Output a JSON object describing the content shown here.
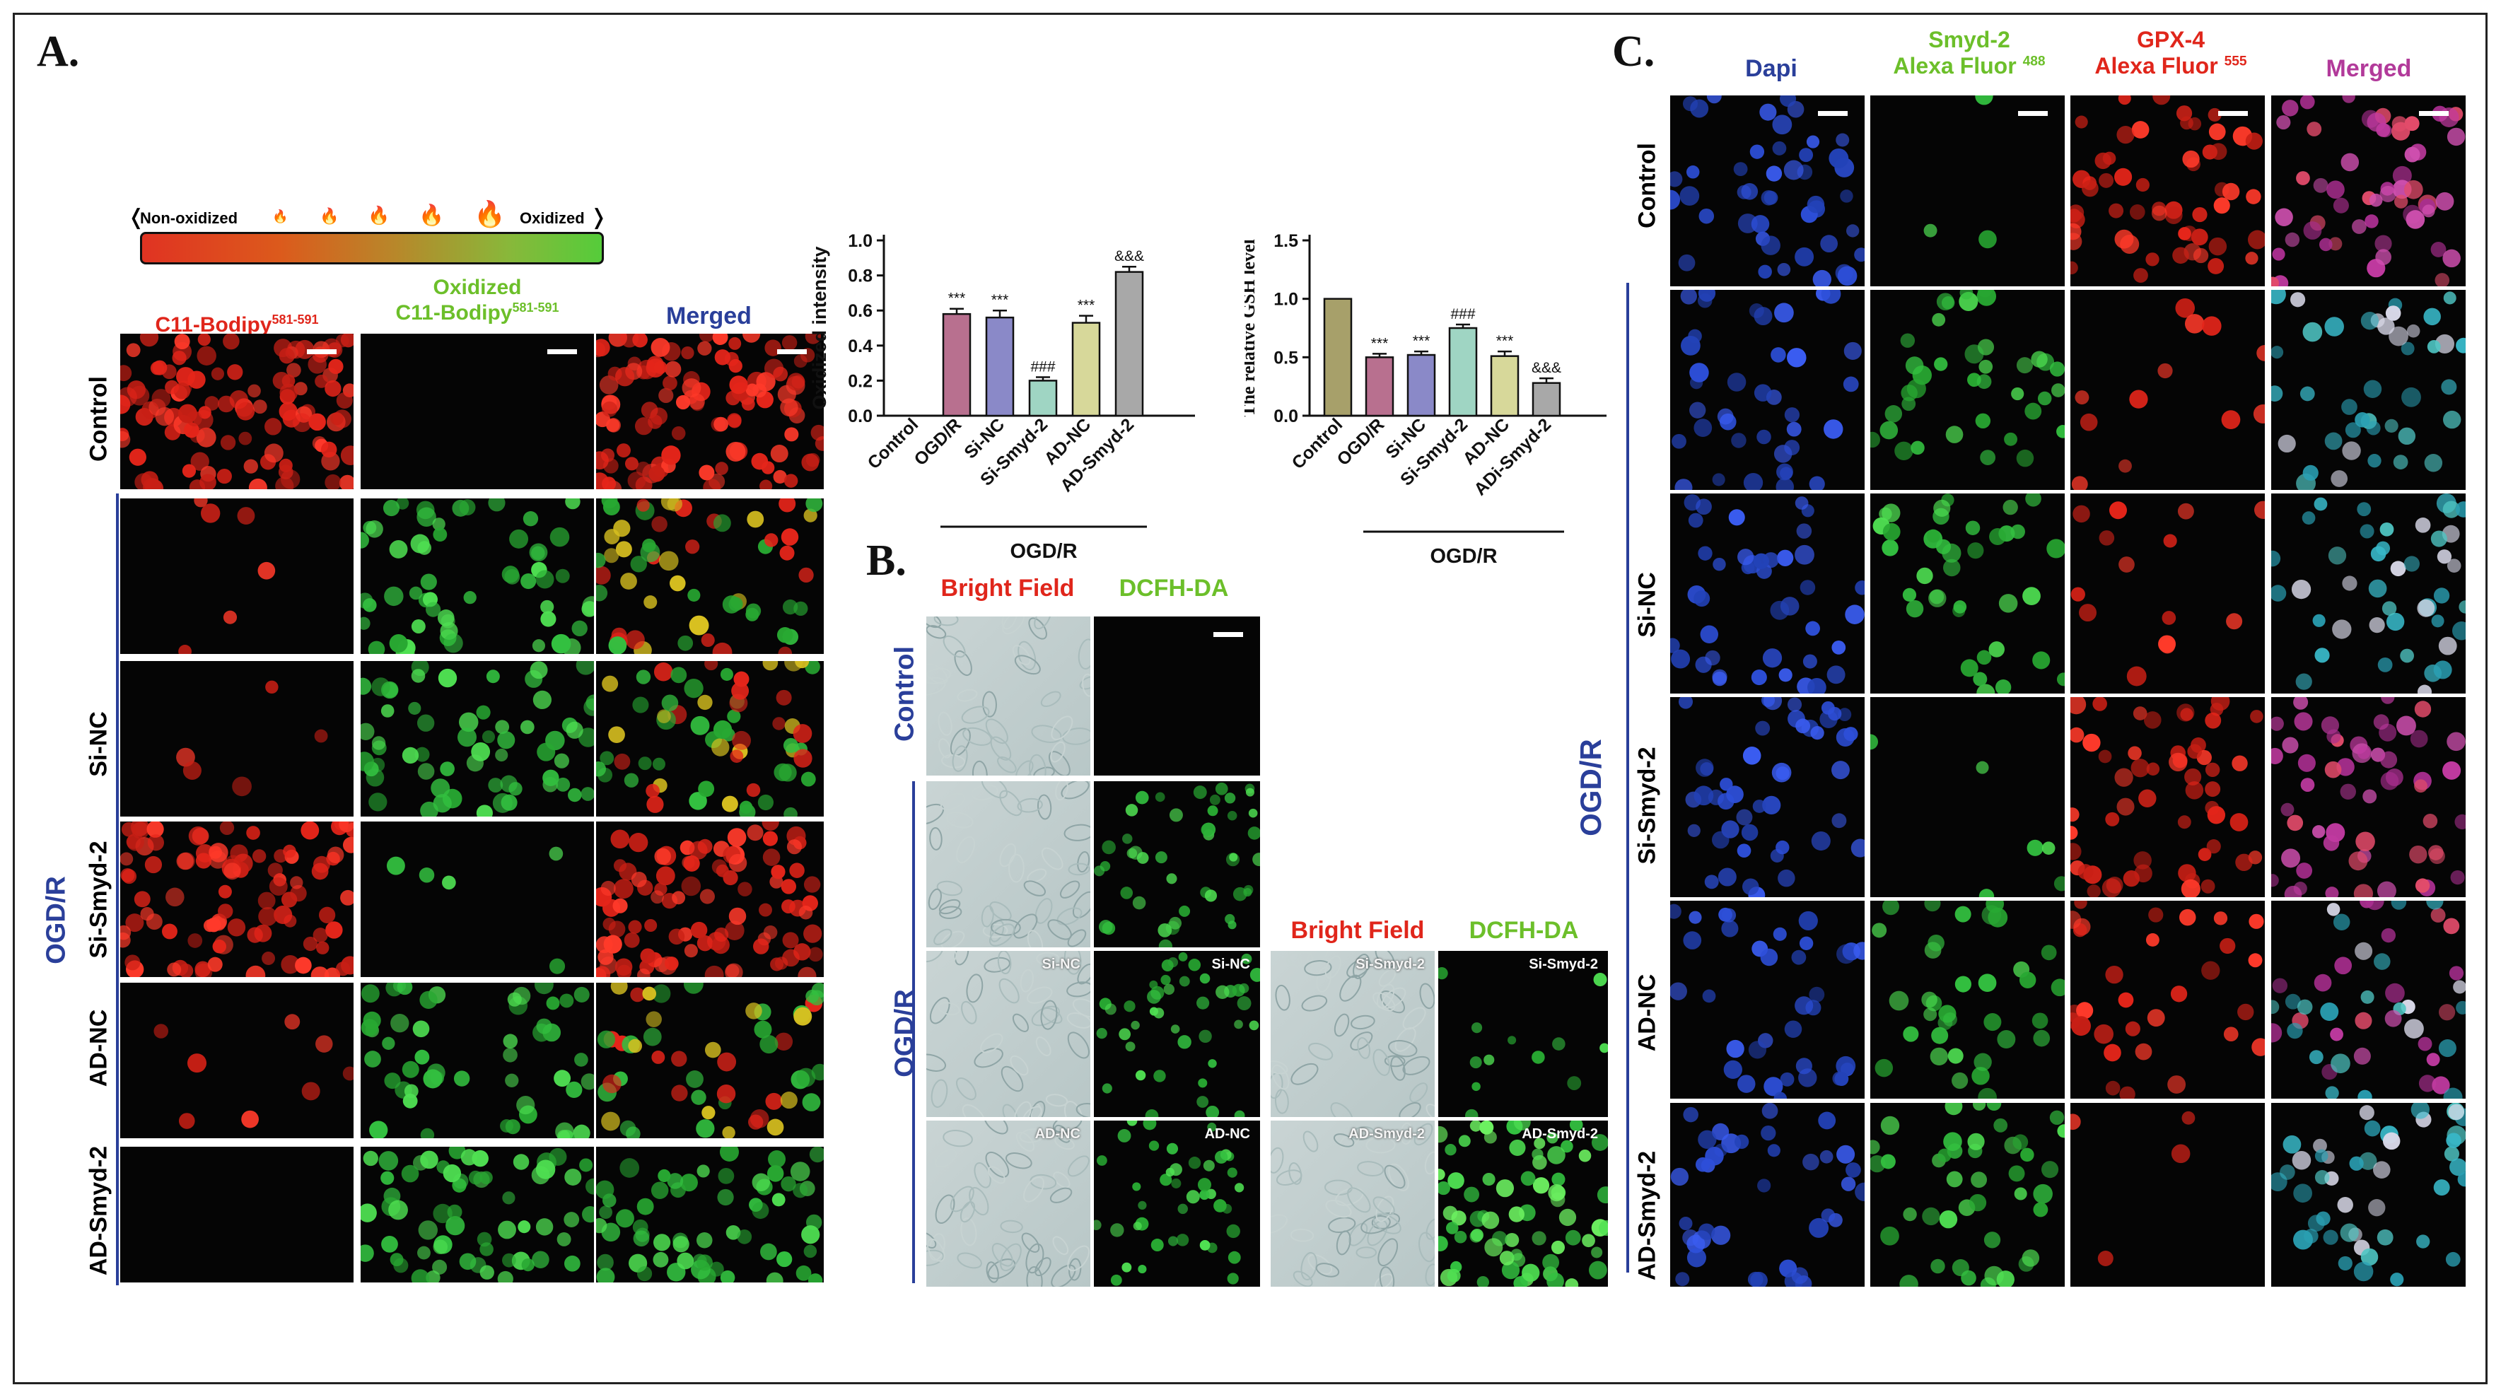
{
  "panel_a": {
    "letter": "A.",
    "scale": {
      "left": "Non-oxidized",
      "right": "Oxidized"
    },
    "col1_title": "C11-Bodipy",
    "col1_sup": "581-591",
    "col2_title_line1": "Oxidized",
    "col2_title_line2": "C11-Bodipy",
    "col2_sup": "581-591",
    "col3_title": "Merged",
    "rows": [
      "Control",
      "Si-NC",
      "Si-Smyd-2",
      "AD-NC",
      "AD-Smyd-2"
    ],
    "group_label": "OGD/R"
  },
  "panel_b": {
    "letter": "B.",
    "bright_field": "Bright Field",
    "dcfh": "DCFH-DA",
    "row_control": "Control",
    "group_label": "OGD/R",
    "tile_labels": {
      "si_nc": "Si-NC",
      "ad_nc": "AD-NC",
      "si_smyd": "Si-Smyd-2",
      "ad_smyd": "AD-Smyd-2"
    }
  },
  "panel_c": {
    "letter": "C.",
    "col1": "Dapi",
    "col2_line1": "Smyd-2",
    "col2_line2": "Alexa Fluor",
    "col2_sup": "488",
    "col3_line1": "GPX-4",
    "col3_line2": "Alexa Fluor",
    "col3_sup": "555",
    "col4": "Merged",
    "rows": [
      "Control",
      "Si-NC",
      "Si-Smyd-2",
      "AD-NC",
      "AD-Smyd-2"
    ],
    "group_label": "OGD/R"
  },
  "chart_data": [
    {
      "type": "bar",
      "ylabel": "Oxidized intensity",
      "ylim": [
        0,
        1.0
      ],
      "yticks": [
        "0.0",
        "0.2",
        "0.4",
        "0.6",
        "0.8",
        "1.0"
      ],
      "categories": [
        "Control",
        "OGD/R",
        "Si-NC",
        "Si-Smyd-2",
        "AD-NC",
        "AD-Smyd-2"
      ],
      "values": [
        0.0,
        0.58,
        0.56,
        0.2,
        0.53,
        0.82
      ],
      "errors": [
        0.0,
        0.03,
        0.04,
        0.02,
        0.04,
        0.03
      ],
      "annotations": [
        "",
        "***",
        "***",
        "###",
        "***",
        "&&&"
      ],
      "colors": [
        "#ffffff",
        "#b8708f",
        "#8a89c8",
        "#9fd5c3",
        "#d7d89a",
        "#a8a8a8"
      ],
      "group_label": "OGD/R"
    },
    {
      "type": "bar",
      "ylabel": "The relative GSH level",
      "ylim": [
        0,
        1.5
      ],
      "yticks": [
        "0.0",
        "0.5",
        "1.0",
        "1.5"
      ],
      "categories": [
        "Control",
        "OGD/R",
        "Si-NC",
        "Si-Smyd-2",
        "AD-NC",
        "ADi-Smyd-2"
      ],
      "values": [
        1.0,
        0.5,
        0.52,
        0.75,
        0.51,
        0.28
      ],
      "errors": [
        0.0,
        0.03,
        0.03,
        0.03,
        0.04,
        0.04
      ],
      "annotations": [
        "",
        "***",
        "***",
        "###",
        "***",
        "&&&"
      ],
      "colors": [
        "#a7a06a",
        "#b8708f",
        "#8a89c8",
        "#9fd5c3",
        "#d7d89a",
        "#a8a8a8"
      ],
      "group_label": "OGD/R"
    }
  ]
}
